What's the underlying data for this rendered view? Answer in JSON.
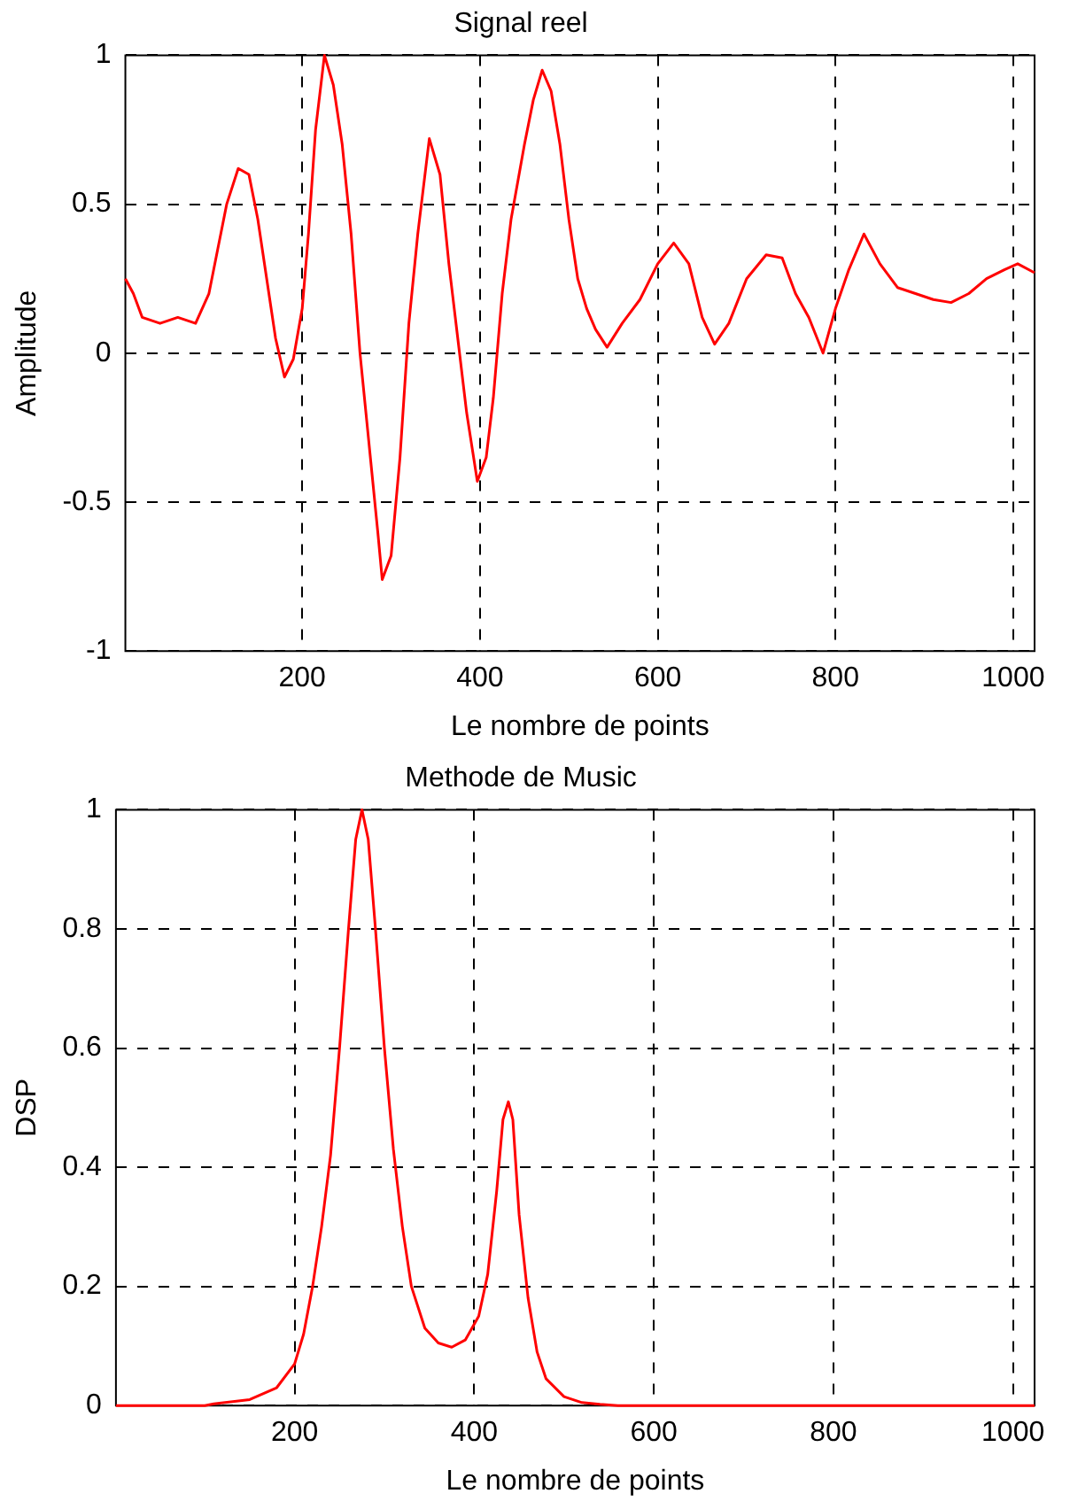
{
  "chart_data": [
    {
      "type": "line",
      "title": "Signal reel",
      "xlabel": "Le nombre de points",
      "ylabel": "Amplitude",
      "xlim": [
        1,
        1024
      ],
      "ylim": [
        -1,
        1
      ],
      "xticks": [
        200,
        400,
        600,
        800,
        1000
      ],
      "yticks": [
        -1,
        -0.5,
        0,
        0.5,
        1
      ],
      "grid": true,
      "legend": false,
      "marker": "none",
      "line_style": "solid",
      "series": [
        {
          "color": "#ff0000",
          "x": [
            1,
            10,
            20,
            40,
            60,
            80,
            95,
            105,
            115,
            128,
            140,
            150,
            160,
            170,
            180,
            190,
            200,
            207,
            215,
            225,
            235,
            245,
            255,
            265,
            275,
            285,
            290,
            300,
            310,
            320,
            330,
            343,
            355,
            365,
            375,
            385,
            397,
            407,
            415,
            425,
            435,
            450,
            460,
            470,
            480,
            490,
            500,
            510,
            520,
            530,
            543,
            560,
            580,
            600,
            618,
            635,
            650,
            664,
            680,
            700,
            722,
            740,
            755,
            770,
            786,
            800,
            815,
            832,
            850,
            870,
            890,
            910,
            930,
            950,
            970,
            990,
            1005,
            1024
          ],
          "values": [
            0.25,
            0.2,
            0.12,
            0.1,
            0.12,
            0.1,
            0.2,
            0.35,
            0.5,
            0.62,
            0.6,
            0.45,
            0.25,
            0.05,
            -0.08,
            -0.02,
            0.15,
            0.4,
            0.75,
            1.0,
            0.9,
            0.7,
            0.4,
            0.0,
            -0.3,
            -0.6,
            -0.76,
            -0.68,
            -0.35,
            0.1,
            0.4,
            0.72,
            0.6,
            0.3,
            0.05,
            -0.2,
            -0.43,
            -0.35,
            -0.15,
            0.2,
            0.45,
            0.7,
            0.85,
            0.95,
            0.88,
            0.7,
            0.45,
            0.25,
            0.15,
            0.08,
            0.02,
            0.1,
            0.18,
            0.3,
            0.37,
            0.3,
            0.12,
            0.03,
            0.1,
            0.25,
            0.33,
            0.32,
            0.2,
            0.12,
            0.0,
            0.15,
            0.28,
            0.4,
            0.3,
            0.22,
            0.2,
            0.18,
            0.17,
            0.2,
            0.25,
            0.28,
            0.3,
            0.27
          ]
        }
      ]
    },
    {
      "type": "line",
      "title": "Methode de Music",
      "xlabel": "Le nombre de points",
      "ylabel": "DSP",
      "xlim": [
        1,
        1024
      ],
      "ylim": [
        0,
        1
      ],
      "xticks": [
        200,
        400,
        600,
        800,
        1000
      ],
      "yticks": [
        0,
        0.2,
        0.4,
        0.6,
        0.8,
        1
      ],
      "grid": true,
      "legend": false,
      "marker": "none",
      "line_style": "solid",
      "series": [
        {
          "color": "#ff0000",
          "x": [
            1,
            100,
            110,
            150,
            180,
            200,
            210,
            220,
            230,
            240,
            250,
            260,
            268,
            275,
            282,
            290,
            300,
            310,
            320,
            330,
            345,
            360,
            375,
            390,
            405,
            415,
            425,
            432,
            438,
            443,
            450,
            460,
            470,
            480,
            500,
            520,
            540,
            560,
            1024
          ],
          "values": [
            0,
            0,
            0.003,
            0.01,
            0.03,
            0.07,
            0.12,
            0.2,
            0.3,
            0.42,
            0.6,
            0.8,
            0.95,
            1.0,
            0.95,
            0.8,
            0.6,
            0.43,
            0.3,
            0.2,
            0.13,
            0.105,
            0.098,
            0.11,
            0.15,
            0.22,
            0.36,
            0.48,
            0.51,
            0.48,
            0.32,
            0.18,
            0.09,
            0.045,
            0.015,
            0.005,
            0.002,
            0,
            0
          ]
        }
      ]
    }
  ]
}
